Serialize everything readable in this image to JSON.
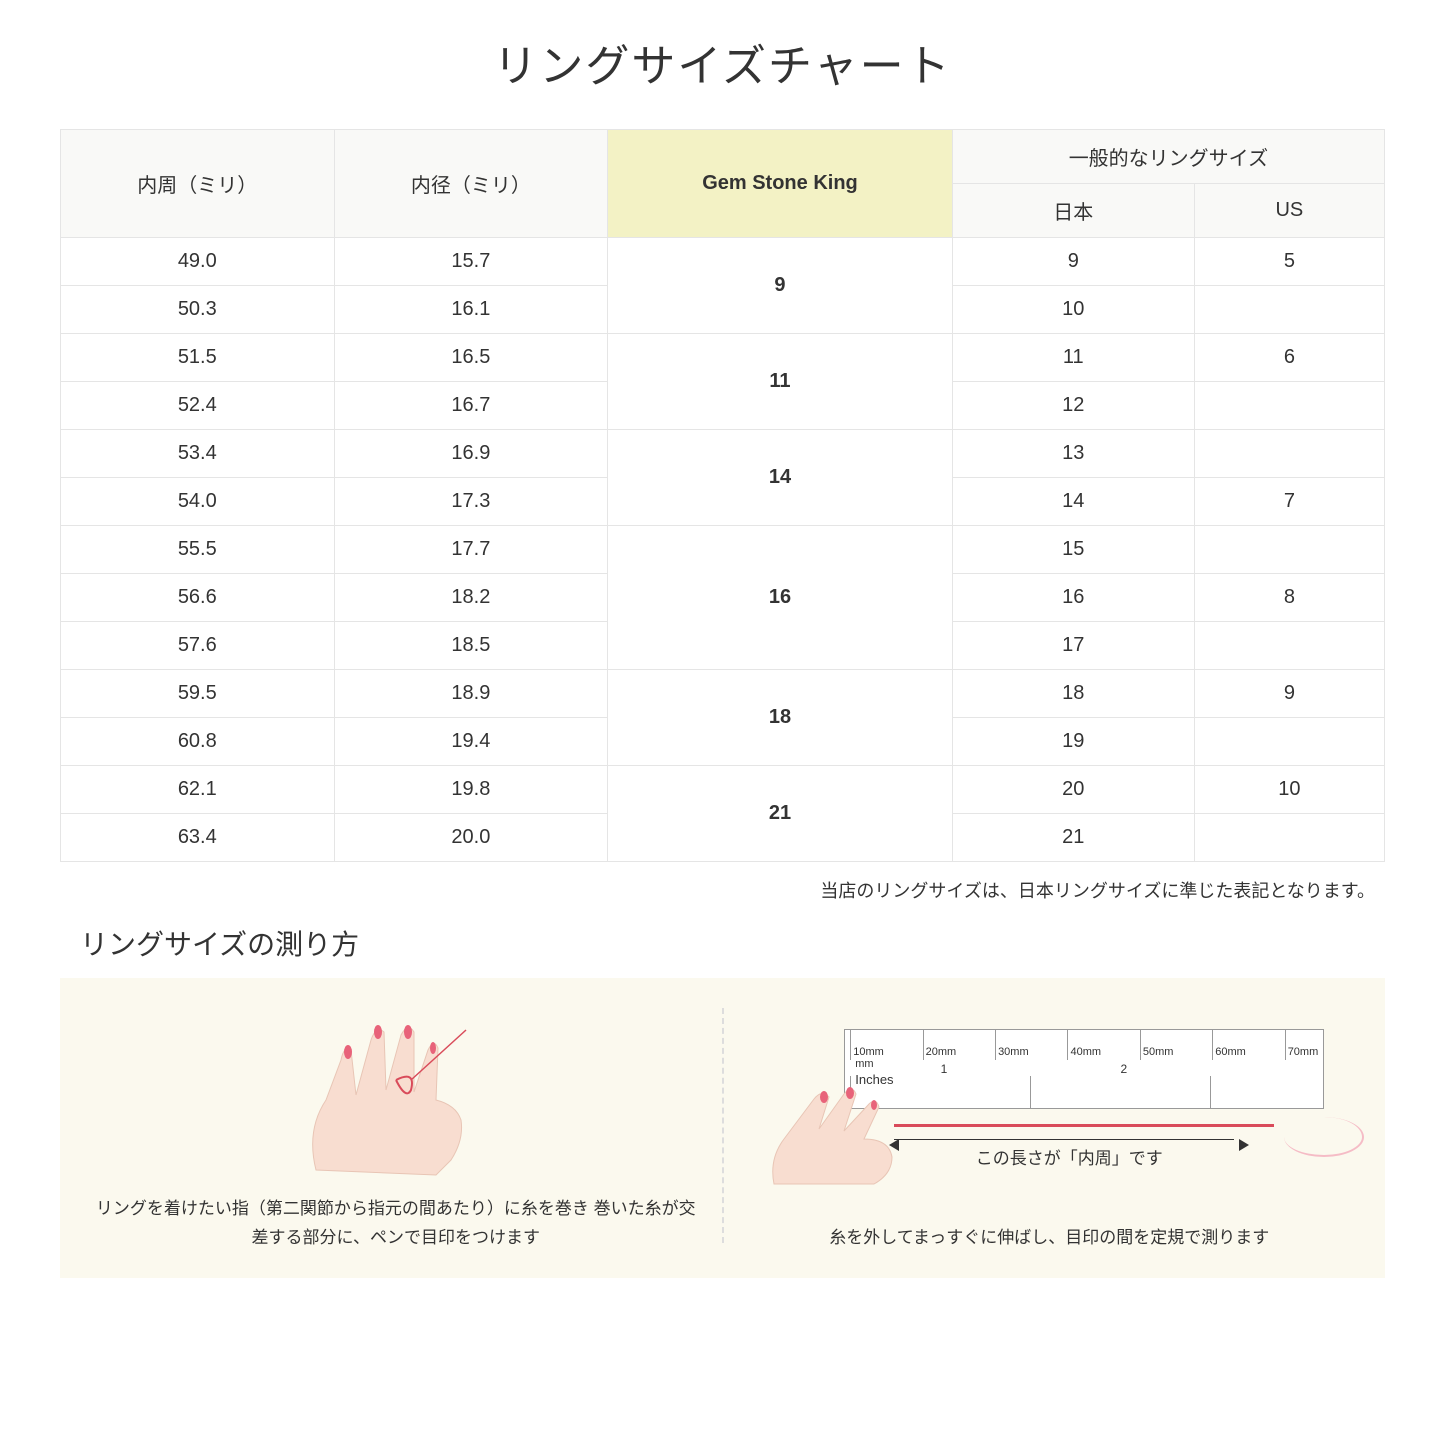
{
  "title": "リングサイズチャート",
  "table": {
    "headers": {
      "col1": "内周（ミリ）",
      "col2": "内径（ミリ）",
      "col3": "Gem Stone King",
      "col4_top": "一般的なリングサイズ",
      "col4_jp": "日本",
      "col4_us": "US"
    },
    "groups": [
      {
        "gsk": "9",
        "rows": [
          {
            "c": "49.0",
            "d": "15.7",
            "jp": "9",
            "us": "5"
          },
          {
            "c": "50.3",
            "d": "16.1",
            "jp": "10",
            "us": ""
          }
        ]
      },
      {
        "gsk": "11",
        "rows": [
          {
            "c": "51.5",
            "d": "16.5",
            "jp": "11",
            "us": "6"
          },
          {
            "c": "52.4",
            "d": "16.7",
            "jp": "12",
            "us": ""
          }
        ]
      },
      {
        "gsk": "14",
        "rows": [
          {
            "c": "53.4",
            "d": "16.9",
            "jp": "13",
            "us": ""
          },
          {
            "c": "54.0",
            "d": "17.3",
            "jp": "14",
            "us": "7"
          }
        ]
      },
      {
        "gsk": "16",
        "rows": [
          {
            "c": "55.5",
            "d": "17.7",
            "jp": "15",
            "us": ""
          },
          {
            "c": "56.6",
            "d": "18.2",
            "jp": "16",
            "us": "8"
          },
          {
            "c": "57.6",
            "d": "18.5",
            "jp": "17",
            "us": ""
          }
        ]
      },
      {
        "gsk": "18",
        "rows": [
          {
            "c": "59.5",
            "d": "18.9",
            "jp": "18",
            "us": "9"
          },
          {
            "c": "60.8",
            "d": "19.4",
            "jp": "19",
            "us": ""
          }
        ]
      },
      {
        "gsk": "21",
        "rows": [
          {
            "c": "62.1",
            "d": "19.8",
            "jp": "20",
            "us": "10"
          },
          {
            "c": "63.4",
            "d": "20.0",
            "jp": "21",
            "us": ""
          }
        ]
      }
    ]
  },
  "note": "当店のリングサイズは、日本リングサイズに準じた表記となります。",
  "subtitle": "リングサイズの測り方",
  "panel1_text": "リングを着けたい指（第二関節から指元の間あたり）に糸を巻き\n巻いた糸が交差する部分に、ペンで目印をつけます",
  "panel2_label": "この長さが「内周」です",
  "panel2_text": "糸を外してまっすぐに伸ばし、目印の間を定規で測ります",
  "ruler": {
    "mm_label": "mm",
    "in_label": "Inches",
    "ticks": [
      "10mm",
      "20mm",
      "30mm",
      "40mm",
      "50mm",
      "60mm",
      "70mm"
    ],
    "inch_ticks": [
      "1",
      "2"
    ]
  },
  "colors": {
    "header_bg": "#f9f9f7",
    "gsk_bg": "#f3f2c5",
    "border": "#e5e5e5",
    "instruction_bg": "#fbf9ee",
    "thread": "#d94b5a",
    "skin": "#f8ddd0",
    "nail": "#e8637a"
  }
}
